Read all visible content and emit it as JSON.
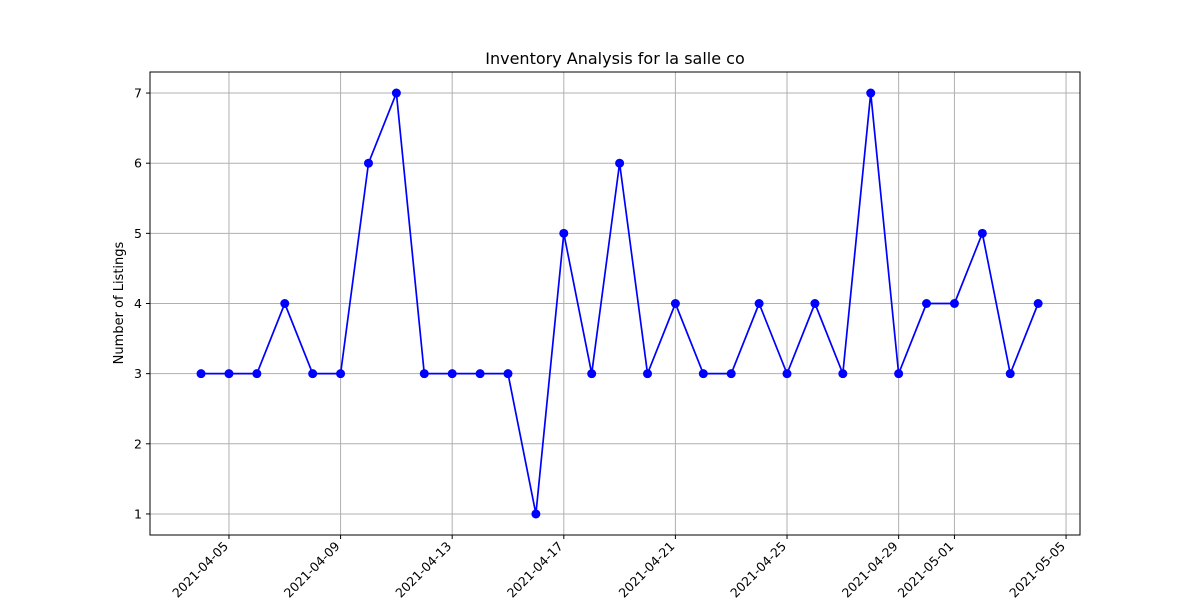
{
  "chart_data": {
    "type": "line",
    "title": "Inventory Analysis for la salle co",
    "xlabel": "",
    "ylabel": "Number of Listings",
    "grid": true,
    "legend": "none",
    "line_color": "#0000ff",
    "marker": "circle",
    "x_ticks": [
      "2021-04-05",
      "2021-04-09",
      "2021-04-13",
      "2021-04-17",
      "2021-04-21",
      "2021-04-25",
      "2021-04-29",
      "2021-05-01",
      "2021-05-05"
    ],
    "y_ticks": [
      1,
      2,
      3,
      4,
      5,
      6,
      7
    ],
    "xlim": [
      "2021-04-02",
      "2021-05-05"
    ],
    "ylim": [
      0.7,
      7.3
    ],
    "x": [
      "2021-04-04",
      "2021-04-05",
      "2021-04-06",
      "2021-04-07",
      "2021-04-08",
      "2021-04-09",
      "2021-04-10",
      "2021-04-11",
      "2021-04-12",
      "2021-04-13",
      "2021-04-14",
      "2021-04-15",
      "2021-04-16",
      "2021-04-17",
      "2021-04-18",
      "2021-04-19",
      "2021-04-20",
      "2021-04-21",
      "2021-04-22",
      "2021-04-23",
      "2021-04-24",
      "2021-04-25",
      "2021-04-26",
      "2021-04-27",
      "2021-04-28",
      "2021-04-29",
      "2021-04-30",
      "2021-05-01",
      "2021-05-02",
      "2021-05-03",
      "2021-05-04"
    ],
    "values": [
      3,
      3,
      3,
      4,
      3,
      3,
      6,
      7,
      3,
      3,
      3,
      3,
      1,
      5,
      3,
      6,
      3,
      4,
      3,
      3,
      4,
      3,
      4,
      3,
      7,
      3,
      4,
      4,
      5,
      3,
      4
    ]
  }
}
